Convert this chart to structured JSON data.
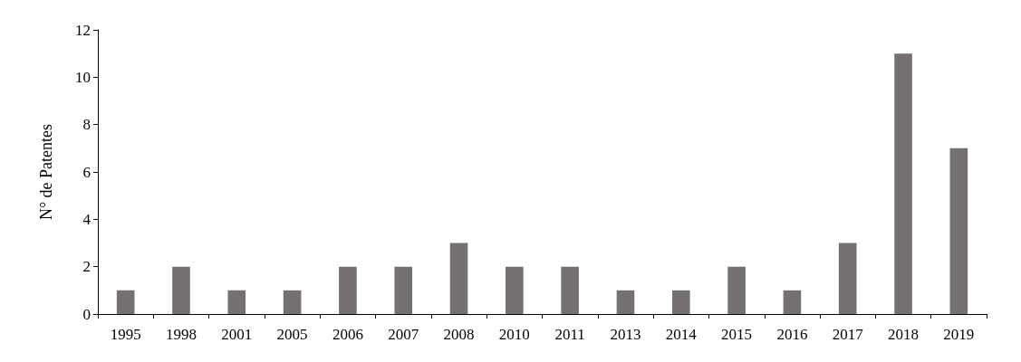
{
  "chart_data": {
    "type": "bar",
    "ylabel": "N° de Patentes",
    "categories": [
      "1995",
      "1998",
      "2001",
      "2005",
      "2006",
      "2007",
      "2008",
      "2010",
      "2011",
      "2013",
      "2014",
      "2015",
      "2016",
      "2017",
      "2018",
      "2019"
    ],
    "values": [
      1,
      2,
      1,
      1,
      2,
      2,
      3,
      2,
      2,
      1,
      1,
      2,
      1,
      3,
      11,
      7
    ],
    "color": "#767171",
    "ylim": [
      0,
      12
    ],
    "yticks": [
      0,
      2,
      4,
      6,
      8,
      10,
      12
    ],
    "grid": false
  }
}
